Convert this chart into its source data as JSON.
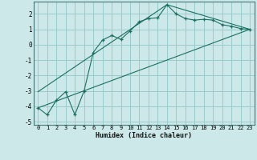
{
  "xlabel": "Humidex (Indice chaleur)",
  "bg_color": "#cce8e8",
  "grid_color": "#99cccc",
  "line_color": "#1a7060",
  "xlim": [
    -0.5,
    23.5
  ],
  "ylim": [
    -5.2,
    2.8
  ],
  "xticks": [
    0,
    1,
    2,
    3,
    4,
    5,
    6,
    7,
    8,
    9,
    10,
    11,
    12,
    13,
    14,
    15,
    16,
    17,
    18,
    19,
    20,
    21,
    22,
    23
  ],
  "yticks": [
    -5,
    -4,
    -3,
    -2,
    -1,
    0,
    1,
    2
  ],
  "series1_x": [
    0,
    1,
    2,
    3,
    4,
    5,
    6,
    7,
    8,
    9,
    10,
    11,
    12,
    13,
    14,
    15,
    16,
    17,
    18,
    19,
    20,
    21,
    22,
    23
  ],
  "series1_y": [
    -4.1,
    -4.55,
    -3.6,
    -3.05,
    -4.55,
    -3.0,
    -0.5,
    0.3,
    0.6,
    0.35,
    0.9,
    1.5,
    1.7,
    1.75,
    2.6,
    2.0,
    1.7,
    1.6,
    1.65,
    1.6,
    1.3,
    1.2,
    1.05,
    1.0
  ],
  "series2_x": [
    0,
    23
  ],
  "series2_y": [
    -4.1,
    1.0
  ],
  "series3_x": [
    0,
    14,
    23
  ],
  "series3_y": [
    -3.05,
    2.6,
    1.0
  ],
  "xlabel_fontsize": 6.0,
  "tick_fontsize": 5.0
}
